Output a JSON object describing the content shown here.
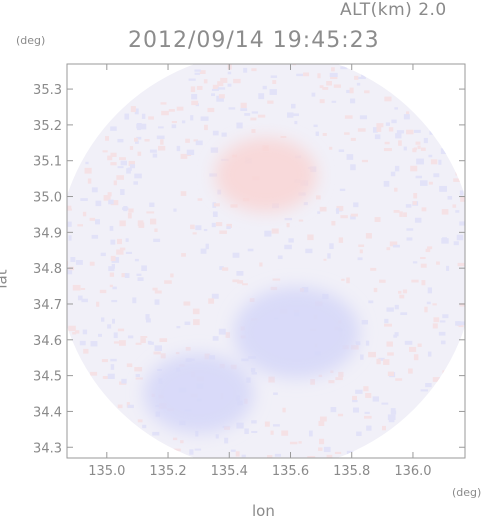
{
  "header": {
    "altitude_label": "ALT(km) 2.0",
    "timestamp": "2012/09/14 19:45:23"
  },
  "axes": {
    "y_unit": "(deg)",
    "x_unit": "(deg)",
    "x_label": "lon",
    "y_label": "lat"
  },
  "chart_data": {
    "type": "heatmap",
    "title": "2012/09/14 19:45:23",
    "subtitle": "ALT(km) 2.0",
    "xlabel": "lon",
    "ylabel": "lat",
    "xlim": [
      134.87,
      136.17
    ],
    "ylim": [
      34.27,
      35.37
    ],
    "x_ticks": [
      {
        "value": 135.0,
        "label": "135.0"
      },
      {
        "value": 135.2,
        "label": "135.2"
      },
      {
        "value": 135.4,
        "label": "135.4"
      },
      {
        "value": 135.6,
        "label": "135.6"
      },
      {
        "value": 135.8,
        "label": "135.8"
      },
      {
        "value": 136.0,
        "label": "136.0"
      }
    ],
    "y_ticks": [
      {
        "value": 34.3,
        "label": "34.3"
      },
      {
        "value": 34.4,
        "label": "34.4"
      },
      {
        "value": 34.5,
        "label": "34.5"
      },
      {
        "value": 34.6,
        "label": "34.6"
      },
      {
        "value": 34.7,
        "label": "34.7"
      },
      {
        "value": 34.8,
        "label": "34.8"
      },
      {
        "value": 34.9,
        "label": "34.9"
      },
      {
        "value": 35.0,
        "label": "35.0"
      },
      {
        "value": 35.1,
        "label": "35.1"
      },
      {
        "value": 35.2,
        "label": "35.2"
      },
      {
        "value": 35.3,
        "label": "35.3"
      }
    ],
    "coverage": {
      "center_lon": 135.52,
      "center_lat": 34.82,
      "radius_deg_lat": 0.585
    },
    "regions": [
      {
        "lon": 135.52,
        "lat": 35.06,
        "r": 0.13,
        "kind": "positive"
      },
      {
        "lon": 135.62,
        "lat": 34.62,
        "r": 0.16,
        "kind": "negative"
      },
      {
        "lon": 135.3,
        "lat": 34.45,
        "r": 0.14,
        "kind": "negative"
      }
    ],
    "colors": {
      "positive": "#f8d6d6",
      "negative": "#d6d8f8",
      "background": "#f1f0f8",
      "axis": "#8a8a8a"
    },
    "grid": false
  }
}
